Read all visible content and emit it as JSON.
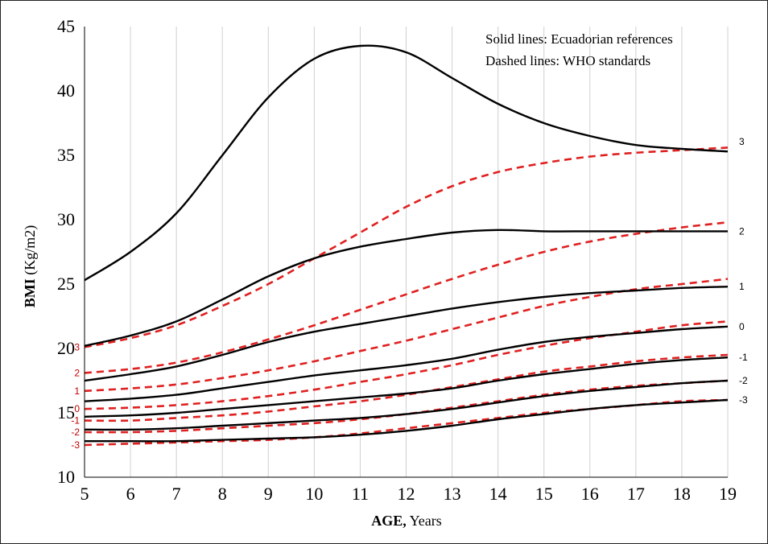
{
  "chart_data": {
    "type": "line",
    "x_axis": {
      "label_bold": "AGE,",
      "label_rest": " Years",
      "range": [
        5,
        19
      ],
      "ticks": [
        "5",
        "6",
        "7",
        "8",
        "9",
        "10",
        "11",
        "12",
        "13",
        "14",
        "15",
        "16",
        "17",
        "18",
        "19"
      ]
    },
    "y_axis": {
      "label_bold": "BMI",
      "label_rest": " (Kg/m2)",
      "range": [
        10,
        45
      ],
      "ticks": [
        "10",
        "15",
        "20",
        "25",
        "30",
        "35",
        "40",
        "45"
      ]
    },
    "grid": "vertical lines at each year",
    "legend": {
      "placement": "top-right",
      "entries": [
        "Solid lines: Ecuadorian references",
        "Dashed lines: WHO standards"
      ]
    },
    "colors": {
      "ecuadorian": "#000000",
      "who": "#e02020"
    },
    "x": [
      5,
      6,
      7,
      8,
      9,
      10,
      11,
      12,
      13,
      14,
      15,
      16,
      17,
      18,
      19
    ],
    "series": [
      {
        "group": "Ecuadorian",
        "label": "3",
        "values": [
          25.3,
          27.5,
          30.5,
          35.0,
          39.5,
          42.5,
          43.5,
          43.0,
          41.0,
          39.0,
          37.5,
          36.5,
          35.8,
          35.5,
          35.3
        ]
      },
      {
        "group": "Ecuadorian",
        "label": "2",
        "values": [
          20.2,
          21.0,
          22.1,
          23.8,
          25.6,
          27.0,
          27.9,
          28.5,
          29.0,
          29.2,
          29.1,
          29.1,
          29.1,
          29.1,
          29.1
        ]
      },
      {
        "group": "Ecuadorian",
        "label": "1",
        "values": [
          17.5,
          18.0,
          18.6,
          19.5,
          20.5,
          21.3,
          21.9,
          22.5,
          23.1,
          23.6,
          24.0,
          24.3,
          24.5,
          24.7,
          24.8
        ]
      },
      {
        "group": "Ecuadorian",
        "label": "0",
        "values": [
          15.9,
          16.1,
          16.4,
          16.9,
          17.4,
          17.9,
          18.3,
          18.7,
          19.2,
          19.9,
          20.5,
          20.9,
          21.2,
          21.5,
          21.7
        ]
      },
      {
        "group": "Ecuadorian",
        "label": "-1",
        "values": [
          14.7,
          14.8,
          15.0,
          15.3,
          15.6,
          15.9,
          16.2,
          16.5,
          16.9,
          17.5,
          18.0,
          18.4,
          18.8,
          19.1,
          19.3
        ]
      },
      {
        "group": "Ecuadorian",
        "label": "-2",
        "values": [
          13.7,
          13.7,
          13.8,
          14.0,
          14.2,
          14.4,
          14.6,
          14.9,
          15.3,
          15.8,
          16.3,
          16.7,
          17.0,
          17.3,
          17.5
        ]
      },
      {
        "group": "Ecuadorian",
        "label": "-3",
        "values": [
          12.8,
          12.8,
          12.8,
          12.9,
          13.0,
          13.1,
          13.3,
          13.6,
          14.0,
          14.5,
          14.9,
          15.3,
          15.6,
          15.8,
          16.0
        ]
      },
      {
        "group": "WHO",
        "label": "3",
        "values": [
          20.1,
          20.8,
          21.8,
          23.3,
          25.0,
          27.0,
          29.0,
          31.0,
          32.6,
          33.7,
          34.4,
          34.9,
          35.2,
          35.4,
          35.6
        ]
      },
      {
        "group": "WHO",
        "label": "2",
        "values": [
          18.1,
          18.4,
          18.9,
          19.7,
          20.7,
          21.8,
          23.0,
          24.2,
          25.4,
          26.5,
          27.5,
          28.3,
          28.9,
          29.4,
          29.8
        ]
      },
      {
        "group": "WHO",
        "label": "1",
        "values": [
          16.7,
          16.9,
          17.2,
          17.7,
          18.3,
          19.0,
          19.8,
          20.6,
          21.5,
          22.4,
          23.3,
          24.0,
          24.6,
          25.0,
          25.4
        ]
      },
      {
        "group": "WHO",
        "label": "0",
        "values": [
          15.3,
          15.4,
          15.6,
          15.9,
          16.3,
          16.8,
          17.4,
          18.0,
          18.7,
          19.5,
          20.2,
          20.8,
          21.3,
          21.8,
          22.1
        ]
      },
      {
        "group": "WHO",
        "label": "-1",
        "values": [
          14.4,
          14.4,
          14.6,
          14.8,
          15.1,
          15.5,
          15.9,
          16.4,
          17.0,
          17.6,
          18.2,
          18.6,
          19.0,
          19.3,
          19.5
        ]
      },
      {
        "group": "WHO",
        "label": "-2",
        "values": [
          13.5,
          13.5,
          13.6,
          13.8,
          14.0,
          14.2,
          14.5,
          14.9,
          15.4,
          15.9,
          16.4,
          16.8,
          17.1,
          17.3,
          17.5
        ]
      },
      {
        "group": "WHO",
        "label": "-3",
        "values": [
          12.5,
          12.6,
          12.7,
          12.8,
          12.9,
          13.1,
          13.4,
          13.8,
          14.2,
          14.6,
          15.0,
          15.3,
          15.6,
          15.9,
          16.0
        ]
      }
    ]
  }
}
